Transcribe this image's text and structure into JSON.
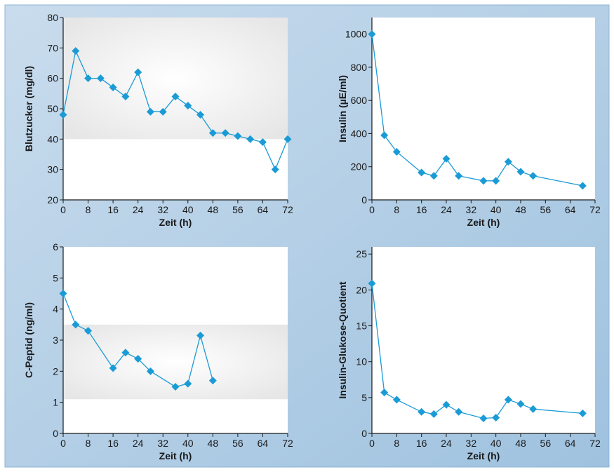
{
  "colors": {
    "background_top_left": "#c9dced",
    "background_bottom_right": "#9fc2df",
    "plot_area": "#ffffff",
    "reference_band": "#e6e6e6",
    "series_line": "#1b9bd6",
    "marker": "#1b9bd6",
    "axis": "#1a1a1a"
  },
  "chart_data": [
    {
      "type": "line",
      "position": "top-left",
      "xlabel": "Zeit (h)",
      "ylabel": "Blutzucker (mg/dl)",
      "xlim": [
        0,
        72
      ],
      "ylim": [
        20,
        80
      ],
      "xticks": [
        0,
        8,
        16,
        24,
        32,
        40,
        48,
        56,
        64,
        72
      ],
      "yticks": [
        20,
        30,
        40,
        50,
        60,
        70,
        80
      ],
      "reference_band": [
        40,
        80
      ],
      "x": [
        0,
        4,
        8,
        12,
        16,
        20,
        24,
        28,
        32,
        36,
        40,
        44,
        48,
        52,
        56,
        60,
        64,
        68,
        72
      ],
      "values": [
        48,
        69,
        60,
        60,
        57,
        54,
        62,
        49,
        49,
        54,
        51,
        48,
        42,
        42,
        41,
        40,
        39,
        30,
        40
      ]
    },
    {
      "type": "line",
      "position": "top-right",
      "xlabel": "Zeit (h)",
      "ylabel": "Insulin (µE/ml)",
      "xlim": [
        0,
        72
      ],
      "ylim": [
        0,
        1100
      ],
      "xticks": [
        0,
        8,
        16,
        24,
        32,
        40,
        48,
        56,
        64,
        72
      ],
      "yticks": [
        0,
        200,
        400,
        600,
        800,
        1000
      ],
      "x": [
        0,
        4,
        8,
        16,
        20,
        24,
        28,
        36,
        40,
        44,
        48,
        52,
        68
      ],
      "values": [
        1000,
        390,
        290,
        165,
        145,
        248,
        145,
        115,
        115,
        230,
        170,
        145,
        85
      ]
    },
    {
      "type": "line",
      "position": "bottom-left",
      "xlabel": "Zeit (h)",
      "ylabel": "C-Peptid (ng/ml)",
      "xlim": [
        0,
        72
      ],
      "ylim": [
        0,
        6
      ],
      "xticks": [
        0,
        8,
        16,
        24,
        32,
        40,
        48,
        56,
        64,
        72
      ],
      "yticks": [
        0,
        1,
        2,
        3,
        4,
        5,
        6
      ],
      "reference_band": [
        1.1,
        3.5
      ],
      "x": [
        0,
        4,
        8,
        16,
        20,
        24,
        28,
        36,
        40,
        44,
        48
      ],
      "values": [
        4.5,
        3.5,
        3.3,
        2.1,
        2.6,
        2.4,
        2.0,
        1.5,
        1.6,
        3.15,
        1.7
      ]
    },
    {
      "type": "line",
      "position": "bottom-right",
      "xlabel": "Zeit (h)",
      "ylabel": "Insulin-Glukose-Quotient",
      "xlim": [
        0,
        72
      ],
      "ylim": [
        0,
        26
      ],
      "xticks": [
        0,
        8,
        16,
        24,
        32,
        40,
        48,
        56,
        64,
        72
      ],
      "yticks": [
        0,
        5,
        10,
        15,
        20,
        25
      ],
      "x": [
        0,
        4,
        8,
        16,
        20,
        24,
        28,
        36,
        40,
        44,
        48,
        52,
        68
      ],
      "values": [
        20.9,
        5.7,
        4.7,
        3.0,
        2.7,
        4.0,
        3.0,
        2.1,
        2.2,
        4.7,
        4.1,
        3.4,
        2.8
      ]
    }
  ]
}
